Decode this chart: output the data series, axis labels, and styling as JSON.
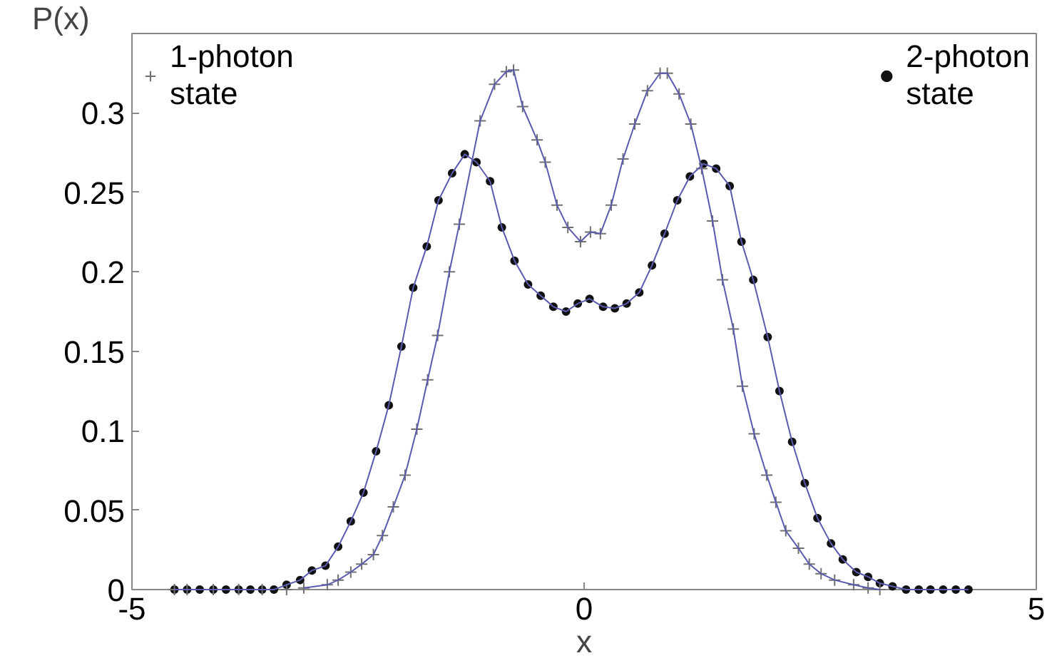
{
  "chart_data": {
    "type": "line",
    "xlabel": "x",
    "ylabel": "P(x)",
    "xlim": [
      -5,
      5
    ],
    "ylim": [
      0,
      0.35
    ],
    "xticks": [
      -5,
      0,
      5
    ],
    "yticks": [
      0,
      0.05,
      0.1,
      0.15,
      0.2,
      0.25,
      0.3
    ],
    "grid": false,
    "legend": "top",
    "series": [
      {
        "color": "#5a5ab0",
        "marker": "none",
        "x": [
          -3.1,
          -2.84,
          -2.72,
          -2.58,
          -2.46,
          -2.33,
          -2.23,
          -2.11,
          -1.98,
          -1.85,
          -1.73,
          -1.62,
          -1.49,
          -1.38,
          -1.15,
          -0.99,
          -0.86,
          -0.78,
          -0.68,
          -0.52,
          -0.43,
          -0.3,
          -0.18,
          -0.04,
          0.07,
          0.18,
          0.3,
          0.43,
          0.56,
          0.7,
          0.84,
          0.92,
          1.05,
          1.18,
          1.3,
          1.42,
          1.53,
          1.65,
          1.75,
          1.88,
          2.02,
          2.12,
          2.23,
          2.37,
          2.49,
          2.62,
          2.77,
          2.98,
          3.14,
          3.27
        ],
        "values": [
          0.001,
          0.003,
          0.006,
          0.011,
          0.016,
          0.022,
          0.034,
          0.052,
          0.072,
          0.101,
          0.132,
          0.16,
          0.2,
          0.23,
          0.295,
          0.318,
          0.326,
          0.327,
          0.304,
          0.283,
          0.269,
          0.242,
          0.228,
          0.219,
          0.225,
          0.224,
          0.242,
          0.271,
          0.293,
          0.314,
          0.325,
          0.325,
          0.312,
          0.293,
          0.265,
          0.232,
          0.195,
          0.164,
          0.128,
          0.098,
          0.072,
          0.055,
          0.037,
          0.026,
          0.016,
          0.01,
          0.006,
          0.003,
          0.001,
          0
        ]
      },
      {
        "color": "#5a5ab0",
        "marker": "none",
        "x": [
          -4.53,
          -4.39,
          -4.25,
          -4.1,
          -3.96,
          -3.82,
          -3.69,
          -3.56,
          -3.43,
          -3.29,
          -3.14,
          -3.01,
          -2.86,
          -2.72,
          -2.58,
          -2.44,
          -2.3,
          -2.16,
          -2.02,
          -1.89,
          -1.74,
          -1.61,
          -1.46,
          -1.32,
          -1.19,
          -1.04,
          -0.91,
          -0.77,
          -0.62,
          -0.48,
          -0.34,
          -0.2,
          -0.07,
          0.06,
          0.21,
          0.34,
          0.47,
          0.61,
          0.75,
          0.89,
          1.03,
          1.17,
          1.32,
          1.46,
          1.61,
          1.74,
          1.87,
          2.03,
          2.16,
          2.3,
          2.44,
          2.58,
          2.73,
          2.86,
          3.01,
          3.14,
          3.27,
          3.41,
          3.56,
          3.7,
          3.83,
          3.97,
          4.11,
          4.25
        ],
        "values": [
          0,
          0,
          0,
          0,
          0,
          0,
          0,
          0,
          0,
          0.003,
          0.006,
          0.012,
          0.015,
          0.027,
          0.043,
          0.061,
          0.087,
          0.116,
          0.153,
          0.19,
          0.216,
          0.245,
          0.262,
          0.274,
          0.269,
          0.257,
          0.228,
          0.207,
          0.192,
          0.185,
          0.178,
          0.175,
          0.18,
          0.183,
          0.178,
          0.177,
          0.18,
          0.187,
          0.204,
          0.224,
          0.245,
          0.26,
          0.268,
          0.265,
          0.254,
          0.219,
          0.195,
          0.159,
          0.125,
          0.093,
          0.067,
          0.045,
          0.029,
          0.019,
          0.011,
          0.008,
          0.004,
          0.002,
          0,
          0,
          0,
          0,
          0,
          0
        ]
      },
      {
        "type": "scatter",
        "name": "1-photon state",
        "color": "#707070",
        "marker": "cross",
        "x": [
          -4.53,
          -4.39,
          -4.1,
          -3.82,
          -3.56,
          -3.29,
          -3.1,
          -2.84,
          -2.72,
          -2.58,
          -2.46,
          -2.33,
          -2.23,
          -2.11,
          -1.98,
          -1.85,
          -1.73,
          -1.62,
          -1.49,
          -1.38,
          -1.15,
          -0.99,
          -0.86,
          -0.78,
          -0.68,
          -0.52,
          -0.43,
          -0.3,
          -0.18,
          -0.04,
          0.07,
          0.18,
          0.3,
          0.43,
          0.56,
          0.7,
          0.84,
          0.92,
          1.05,
          1.18,
          1.3,
          1.42,
          1.53,
          1.65,
          1.75,
          1.88,
          2.02,
          2.12,
          2.23,
          2.37,
          2.49,
          2.62,
          2.77,
          2.98,
          3.14,
          3.27
        ],
        "values": [
          0,
          0,
          0,
          0,
          0,
          0,
          0.001,
          0.003,
          0.006,
          0.011,
          0.016,
          0.022,
          0.034,
          0.052,
          0.072,
          0.101,
          0.132,
          0.16,
          0.2,
          0.23,
          0.295,
          0.318,
          0.326,
          0.327,
          0.304,
          0.283,
          0.269,
          0.242,
          0.228,
          0.219,
          0.225,
          0.224,
          0.242,
          0.271,
          0.293,
          0.314,
          0.325,
          0.325,
          0.312,
          0.293,
          0.265,
          0.232,
          0.195,
          0.164,
          0.128,
          0.098,
          0.072,
          0.055,
          0.037,
          0.026,
          0.016,
          0.01,
          0.006,
          0.003,
          0.001,
          0
        ]
      },
      {
        "type": "scatter",
        "name": "2-photon state",
        "color": "#111111",
        "marker": "circle",
        "x": [
          -4.53,
          -4.39,
          -4.25,
          -4.1,
          -3.96,
          -3.82,
          -3.69,
          -3.56,
          -3.43,
          -3.29,
          -3.14,
          -3.01,
          -2.86,
          -2.72,
          -2.58,
          -2.44,
          -2.3,
          -2.16,
          -2.02,
          -1.89,
          -1.74,
          -1.61,
          -1.46,
          -1.32,
          -1.19,
          -1.04,
          -0.91,
          -0.77,
          -0.62,
          -0.48,
          -0.34,
          -0.2,
          -0.07,
          0.06,
          0.21,
          0.34,
          0.47,
          0.61,
          0.75,
          0.89,
          1.03,
          1.17,
          1.32,
          1.46,
          1.61,
          1.74,
          1.87,
          2.03,
          2.16,
          2.3,
          2.44,
          2.58,
          2.73,
          2.86,
          3.01,
          3.14,
          3.27,
          3.41,
          3.56,
          3.7,
          3.83,
          3.97,
          4.11,
          4.25
        ],
        "values": [
          0,
          0,
          0,
          0,
          0,
          0,
          0,
          0,
          0,
          0.003,
          0.006,
          0.012,
          0.015,
          0.027,
          0.043,
          0.061,
          0.087,
          0.116,
          0.153,
          0.19,
          0.216,
          0.245,
          0.262,
          0.274,
          0.269,
          0.257,
          0.228,
          0.207,
          0.192,
          0.185,
          0.178,
          0.175,
          0.18,
          0.183,
          0.178,
          0.177,
          0.18,
          0.187,
          0.204,
          0.224,
          0.245,
          0.26,
          0.268,
          0.265,
          0.254,
          0.219,
          0.195,
          0.159,
          0.125,
          0.093,
          0.067,
          0.045,
          0.029,
          0.019,
          0.011,
          0.008,
          0.004,
          0.002,
          0,
          0,
          0,
          0,
          0,
          0
        ]
      }
    ]
  }
}
